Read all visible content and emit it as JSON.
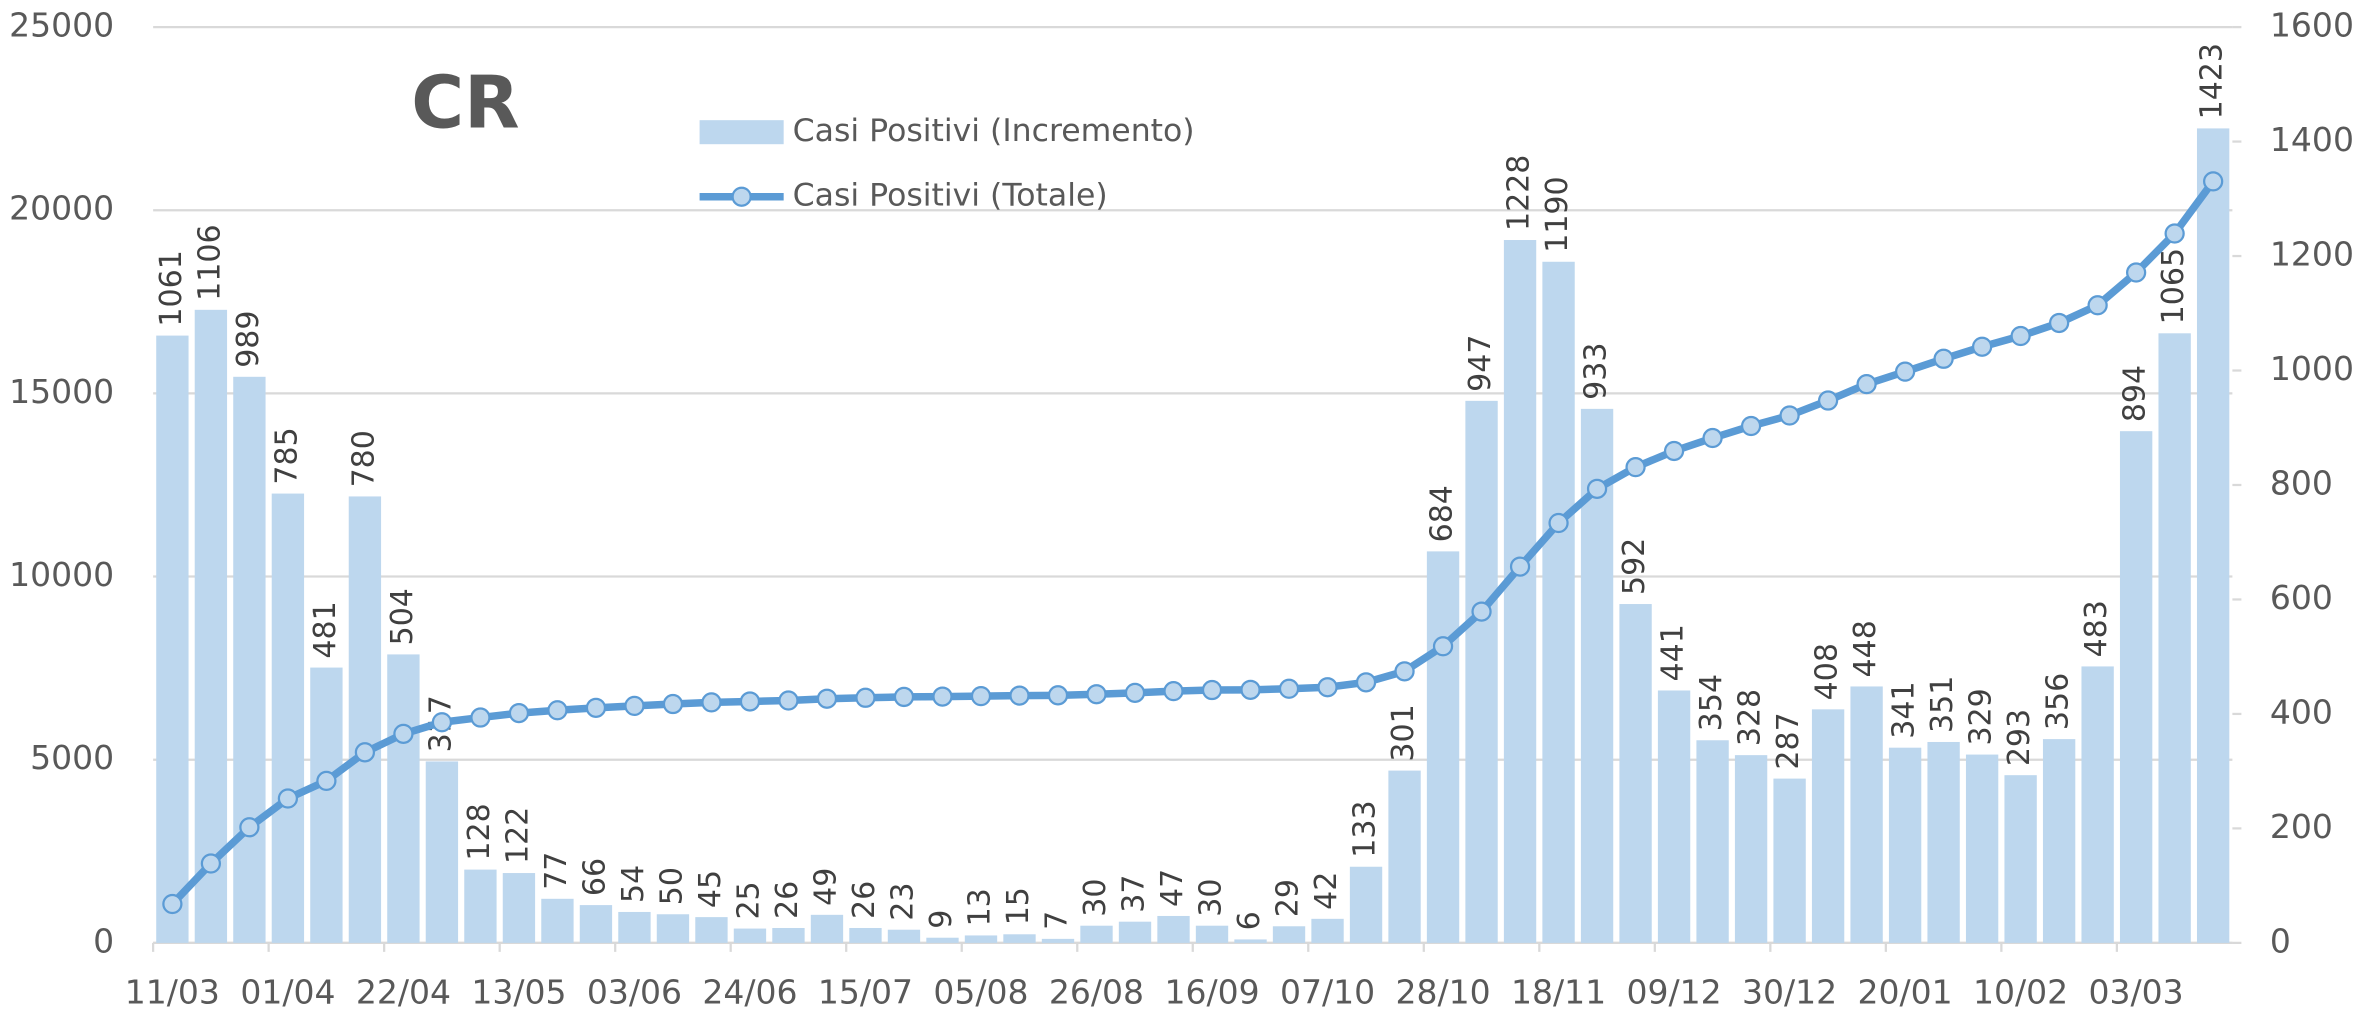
{
  "chart_data": {
    "type": "bar_line",
    "title": "CR",
    "categories": [
      "11/03",
      null,
      null,
      "01/04",
      null,
      null,
      "22/04",
      null,
      null,
      "13/05",
      null,
      null,
      "03/06",
      null,
      null,
      "24/06",
      null,
      null,
      "15/07",
      null,
      null,
      "05/08",
      null,
      null,
      "26/08",
      null,
      null,
      "16/09",
      null,
      null,
      "07/10",
      null,
      null,
      "28/10",
      null,
      null,
      "18/11",
      null,
      null,
      "09/12",
      null,
      null,
      "30/12",
      null,
      null,
      "20/01",
      null,
      null,
      "10/02",
      null,
      null,
      "03/03",
      null,
      null
    ],
    "series": [
      {
        "name": "Casi Positivi (Incremento)",
        "type": "bar",
        "axis": "y2",
        "color": "#bdd7ee",
        "values": [
          1061,
          1106,
          989,
          785,
          481,
          780,
          504,
          317,
          128,
          122,
          77,
          66,
          54,
          50,
          45,
          25,
          26,
          49,
          26,
          23,
          9,
          13,
          15,
          7,
          30,
          37,
          47,
          30,
          6,
          29,
          42,
          133,
          301,
          684,
          947,
          1228,
          1190,
          933,
          592,
          441,
          354,
          328,
          287,
          408,
          448,
          341,
          351,
          329,
          293,
          356,
          483,
          894,
          1065,
          1423
        ]
      },
      {
        "name": "Casi Positivi (Totale)",
        "type": "line",
        "axis": "y",
        "color": "#5b9bd5",
        "values": [
          1061,
          2167,
          3156,
          3941,
          4422,
          5202,
          5706,
          6023,
          6151,
          6273,
          6350,
          6416,
          6470,
          6520,
          6565,
          6590,
          6616,
          6665,
          6691,
          6714,
          6723,
          6736,
          6751,
          6758,
          6788,
          6825,
          6872,
          6902,
          6908,
          6937,
          6979,
          7112,
          7413,
          8097,
          9044,
          10272,
          11462,
          12395,
          12987,
          13428,
          13782,
          14110,
          14397,
          14805,
          15253,
          15594,
          15945,
          16274,
          16567,
          16923,
          17406,
          18300,
          19365,
          20788
        ]
      }
    ],
    "ylim": [
      0,
      25000
    ],
    "yticks": [
      0,
      5000,
      10000,
      15000,
      20000,
      25000
    ],
    "y2lim": [
      0,
      1600
    ],
    "y2ticks": [
      0,
      200,
      400,
      600,
      800,
      1000,
      1200,
      1400,
      1600
    ],
    "grid": true
  }
}
